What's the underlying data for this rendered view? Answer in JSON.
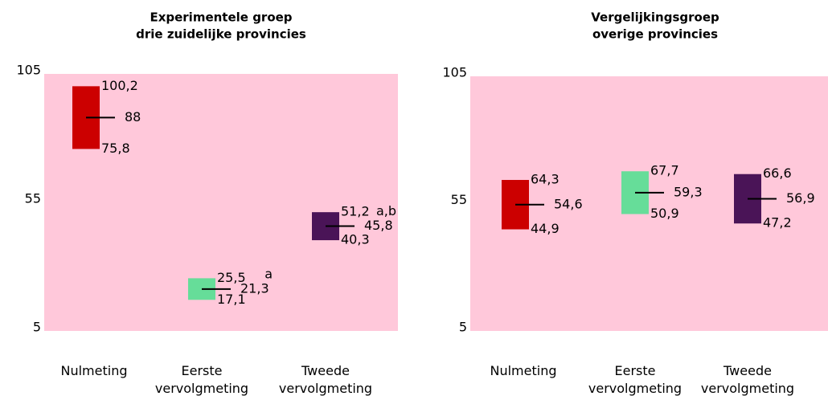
{
  "chart_data": [
    {
      "type": "range",
      "title": [
        "Experimentele groep",
        "drie zuidelijke provincies"
      ],
      "categories": [
        "Nulmeting",
        "Eerste vervolgmeting",
        "Tweede vervolgmeting"
      ],
      "high": [
        100.2,
        25.5,
        51.2
      ],
      "high_labels": [
        "100,2",
        "25,5",
        "51,2"
      ],
      "mean": [
        88,
        21.3,
        45.8
      ],
      "mean_labels": [
        "88",
        "21,3",
        "45,8"
      ],
      "low": [
        75.8,
        17.1,
        40.3
      ],
      "low_labels": [
        "75,8",
        "17,1",
        "40,3"
      ],
      "annotations": [
        null,
        "a",
        "a,b"
      ],
      "colors": [
        "#cc0000",
        "#66dd99",
        "#4a1457"
      ],
      "ylim": [
        5,
        105
      ],
      "yticks": [
        5,
        55,
        105
      ],
      "background": "#ffc8da"
    },
    {
      "type": "range",
      "title": [
        "Vergelijkingsgroep",
        "overige provincies"
      ],
      "categories": [
        "Nulmeting",
        "Eerste vervolgmeting",
        "Tweede vervolgmeting"
      ],
      "high": [
        64.3,
        67.7,
        66.6
      ],
      "high_labels": [
        "64,3",
        "67,7",
        "66,6"
      ],
      "mean": [
        54.6,
        59.3,
        56.9
      ],
      "mean_labels": [
        "54,6",
        "59,3",
        "56,9"
      ],
      "low": [
        44.9,
        50.9,
        47.2
      ],
      "low_labels": [
        "44,9",
        "50,9",
        "47,2"
      ],
      "annotations": [
        null,
        null,
        null
      ],
      "colors": [
        "#cc0000",
        "#66dd99",
        "#4a1457"
      ],
      "ylim": [
        5,
        105
      ],
      "yticks": [
        5,
        55,
        105
      ],
      "background": "#ffc8da"
    }
  ]
}
